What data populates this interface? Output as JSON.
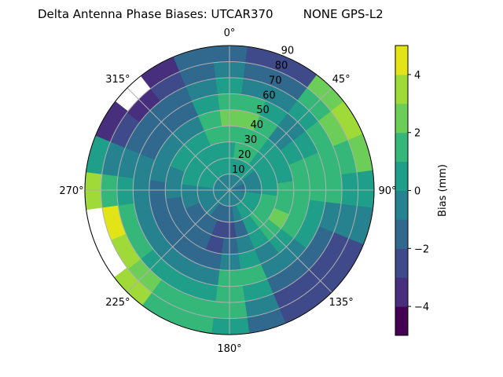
{
  "chart_data": {
    "type": "heatmap",
    "subtype": "polar-contour",
    "title": "Delta Antenna Phase Biases: UTCAR370        NONE GPS-L2",
    "angular_ticks": [
      "0°",
      "45°",
      "90°",
      "135°",
      "180°",
      "225°",
      "270°",
      "315°"
    ],
    "radial_ticks": [
      "10",
      "20",
      "30",
      "40",
      "50",
      "60",
      "70",
      "80",
      "90"
    ],
    "radial_range": [
      0,
      90
    ],
    "theta_zero": "top",
    "theta_direction": "clockwise",
    "grid": true,
    "colorbar": {
      "label": "Bias (mm)",
      "levels": [
        -5,
        -4,
        -3,
        -2,
        -1,
        0,
        1,
        2,
        3,
        4,
        5
      ],
      "ticks": [
        4,
        2,
        0,
        -2,
        -4
      ],
      "tick_labels": [
        "4",
        "2",
        "0",
        "−2",
        "−4"
      ],
      "colors": [
        "#440154",
        "#472f7d",
        "#3e4a89",
        "#31688e",
        "#26828e",
        "#1f9e89",
        "#35b779",
        "#6dcd59",
        "#a0da39",
        "#e2e418"
      ]
    },
    "azimuths_deg": [
      0,
      15,
      30,
      45,
      60,
      75,
      90,
      105,
      120,
      135,
      150,
      165,
      180,
      195,
      210,
      225,
      240,
      255,
      270,
      285,
      300,
      315,
      330,
      345
    ],
    "zeniths_deg": [
      5,
      15,
      25,
      35,
      45,
      55,
      65,
      75,
      85
    ],
    "values_mm": [
      [
        -0.5,
        0.5,
        0.5,
        1.5,
        2.5,
        1.5,
        0.5,
        -0.5,
        -1.5
      ],
      [
        -0.5,
        0.5,
        1.5,
        1.5,
        2.5,
        1.5,
        -0.5,
        -1.5,
        -2.5
      ],
      [
        -0.5,
        0.5,
        1.5,
        1.5,
        1.5,
        0.5,
        -0.5,
        -1.5,
        -2.5
      ],
      [
        -0.5,
        0.5,
        0.5,
        0.5,
        -0.5,
        -0.5,
        0.5,
        1.5,
        2.5
      ],
      [
        -0.5,
        -0.5,
        0.5,
        0.5,
        0.5,
        0.5,
        1.5,
        2.5,
        3.5
      ],
      [
        -1.5,
        -0.5,
        0.5,
        0.5,
        1.5,
        1.5,
        1.5,
        1.5,
        2.5
      ],
      [
        -1.5,
        -0.5,
        0.5,
        1.5,
        1.5,
        1.5,
        1.5,
        0.5,
        0.5
      ],
      [
        -0.5,
        0.5,
        1.5,
        1.5,
        1.5,
        0.5,
        -0.5,
        -0.5,
        -0.5
      ],
      [
        -0.5,
        0.5,
        1.5,
        2.5,
        1.5,
        0.5,
        -1.5,
        -2.5,
        -2.5
      ],
      [
        -0.5,
        0.5,
        1.5,
        1.5,
        0.5,
        -0.5,
        -1.5,
        -2.5,
        -2.5
      ],
      [
        -0.5,
        0.5,
        0.5,
        0.5,
        -0.5,
        -0.5,
        -1.5,
        -2.5,
        -2.5
      ],
      [
        -0.5,
        -0.5,
        -1.5,
        -0.5,
        0.5,
        1.5,
        0.5,
        -0.5,
        -1.5
      ],
      [
        -0.5,
        -1.5,
        -2.5,
        -1.5,
        -0.5,
        1.5,
        1.5,
        1.5,
        0.5
      ],
      [
        -0.5,
        -1.5,
        -2.5,
        -2.5,
        -1.5,
        -0.5,
        0.5,
        1.5,
        1.5
      ],
      [
        -0.5,
        -1.5,
        -1.5,
        -1.5,
        -1.5,
        -0.5,
        0.5,
        1.5,
        1.5
      ],
      [
        -0.5,
        -0.5,
        -1.5,
        -1.5,
        -1.5,
        -0.5,
        0.5,
        2.5,
        3.5
      ],
      [
        -0.5,
        -0.5,
        -1.5,
        -1.5,
        -1.5,
        -0.5,
        1.5,
        3.5,
        null
      ],
      [
        -0.5,
        -0.5,
        -0.5,
        -1.5,
        -1.5,
        -0.5,
        1.5,
        4.5,
        null
      ],
      [
        -0.5,
        -0.5,
        -0.5,
        -0.5,
        -1.5,
        -0.5,
        0.5,
        1.5,
        3.5
      ],
      [
        -0.5,
        0.5,
        0.5,
        -0.5,
        -0.5,
        -0.5,
        -0.5,
        -0.5,
        0.5
      ],
      [
        -0.5,
        0.5,
        0.5,
        0.5,
        -0.5,
        -1.5,
        -1.5,
        -2.5,
        -3.5
      ],
      [
        -0.5,
        0.5,
        0.5,
        0.5,
        -0.5,
        -1.5,
        -1.5,
        -3.5,
        null
      ],
      [
        -0.5,
        0.5,
        0.5,
        0.5,
        -0.5,
        -1.5,
        -1.5,
        -2.5,
        -3.5
      ],
      [
        -0.5,
        0.5,
        0.5,
        1.5,
        1.5,
        0.5,
        -0.5,
        -1.5,
        -1.5
      ]
    ]
  }
}
